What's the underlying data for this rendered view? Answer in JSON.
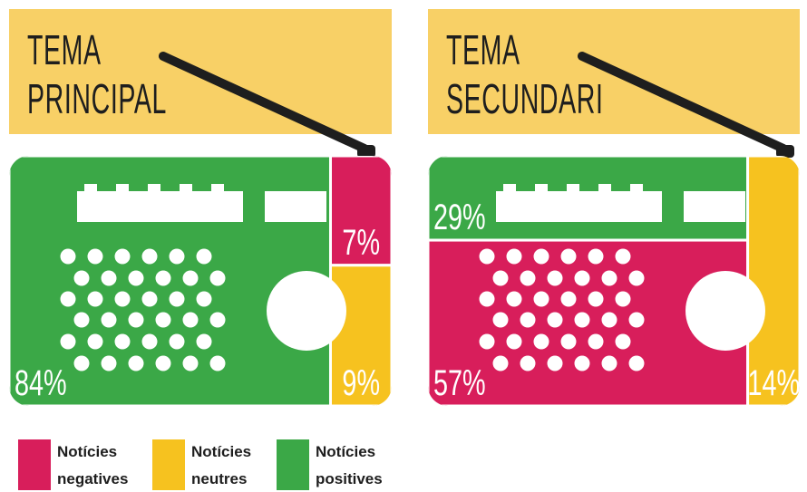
{
  "chart_data": [
    {
      "type": "treemap",
      "title": "TEMA PRINCIPAL",
      "series": [
        {
          "name": "Notícies negatives",
          "color": "#d81e5b",
          "values": [
            7
          ],
          "value_labels": [
            "7%"
          ]
        },
        {
          "name": "Notícies neutres",
          "color": "#f6c21f",
          "values": [
            9
          ],
          "value_labels": [
            "9%"
          ]
        },
        {
          "name": "Notícies positives",
          "color": "#3ba847",
          "values": [
            84
          ],
          "value_labels": [
            "84%"
          ]
        }
      ]
    },
    {
      "type": "treemap",
      "title": "TEMA SECUNDARI",
      "series": [
        {
          "name": "Notícies positives",
          "color": "#3ba847",
          "values": [
            29
          ],
          "value_labels": [
            "29%"
          ]
        },
        {
          "name": "Notícies negatives",
          "color": "#d81e5b",
          "values": [
            57
          ],
          "value_labels": [
            "57%"
          ]
        },
        {
          "name": "Notícies neutres",
          "color": "#f6c21f",
          "values": [
            14
          ],
          "value_labels": [
            "14%"
          ]
        }
      ]
    }
  ]
}
